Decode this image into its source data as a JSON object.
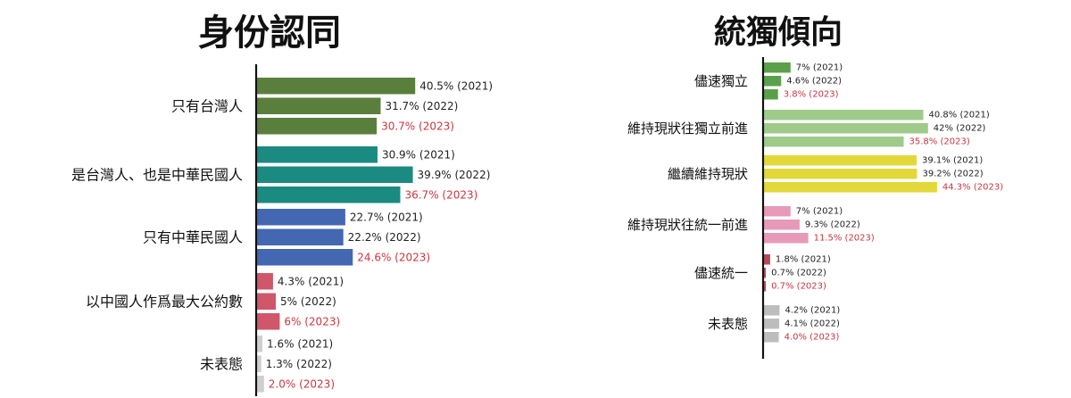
{
  "chart_data": [
    {
      "type": "bar",
      "orientation": "horizontal",
      "title": "身份認同",
      "categories": [
        "只有台灣人",
        "是台灣人、也是中華民國人",
        "只有中華民國人",
        "以中國人作爲最大公約數",
        "未表態"
      ],
      "series": [
        {
          "name": "2021",
          "values": [
            40.5,
            30.9,
            22.7,
            4.3,
            1.6
          ],
          "labels": [
            "40.5% (2021)",
            "30.9% (2021)",
            "22.7% (2021)",
            "4.3% (2021)",
            "1.6% (2021)"
          ]
        },
        {
          "name": "2022",
          "values": [
            31.7,
            39.9,
            22.2,
            5,
            1.3
          ],
          "labels": [
            "31.7% (2022)",
            "39.9% (2022)",
            "22.2% (2022)",
            "5% (2022)",
            "1.3% (2022)"
          ]
        },
        {
          "name": "2023",
          "values": [
            30.7,
            36.7,
            24.6,
            6,
            2.0
          ],
          "labels": [
            "30.7% (2023)",
            "36.7% (2023)",
            "24.6% (2023)",
            "6% (2023)",
            "2.0% (2023)"
          ]
        }
      ],
      "colors": [
        "#5a7f3c",
        "#1b8a80",
        "#4367b0",
        "#d0566a",
        "#cfcfcf"
      ],
      "highlight_year_color": "#c8373f",
      "xlim": [
        0,
        45
      ],
      "grid": false
    },
    {
      "type": "bar",
      "orientation": "horizontal",
      "title": "統獨傾向",
      "categories": [
        "儘速獨立",
        "維持現狀往獨立前進",
        "繼續維持現狀",
        "維持現狀往統一前進",
        "儘速統一",
        "未表態"
      ],
      "series": [
        {
          "name": "2021",
          "values": [
            7,
            40.8,
            39.1,
            7,
            1.8,
            4.2
          ],
          "labels": [
            "7% (2021)",
            "40.8% (2021)",
            "39.1% (2021)",
            "7% (2021)",
            "1.8% (2021)",
            "4.2% (2021)"
          ]
        },
        {
          "name": "2022",
          "values": [
            4.6,
            42,
            39.2,
            9.3,
            0.7,
            4.1
          ],
          "labels": [
            "4.6% (2022)",
            "42% (2022)",
            "39.2% (2022)",
            "9.3% (2022)",
            "0.7% (2022)",
            "4.1% (2022)"
          ]
        },
        {
          "name": "2023",
          "values": [
            3.8,
            35.8,
            44.3,
            11.5,
            0.7,
            4.0
          ],
          "labels": [
            "3.8% (2023)",
            "35.8% (2023)",
            "44.3% (2023)",
            "11.5% (2023)",
            "0.7% (2023)",
            "4.0% (2023)"
          ]
        }
      ],
      "colors": [
        "#5aa04a",
        "#9ecb8a",
        "#e2d83a",
        "#e79ab8",
        "#b44b5a",
        "#bdbdbd"
      ],
      "highlight_year_color": "#c8373f",
      "xlim": [
        0,
        50
      ],
      "grid": false
    }
  ]
}
